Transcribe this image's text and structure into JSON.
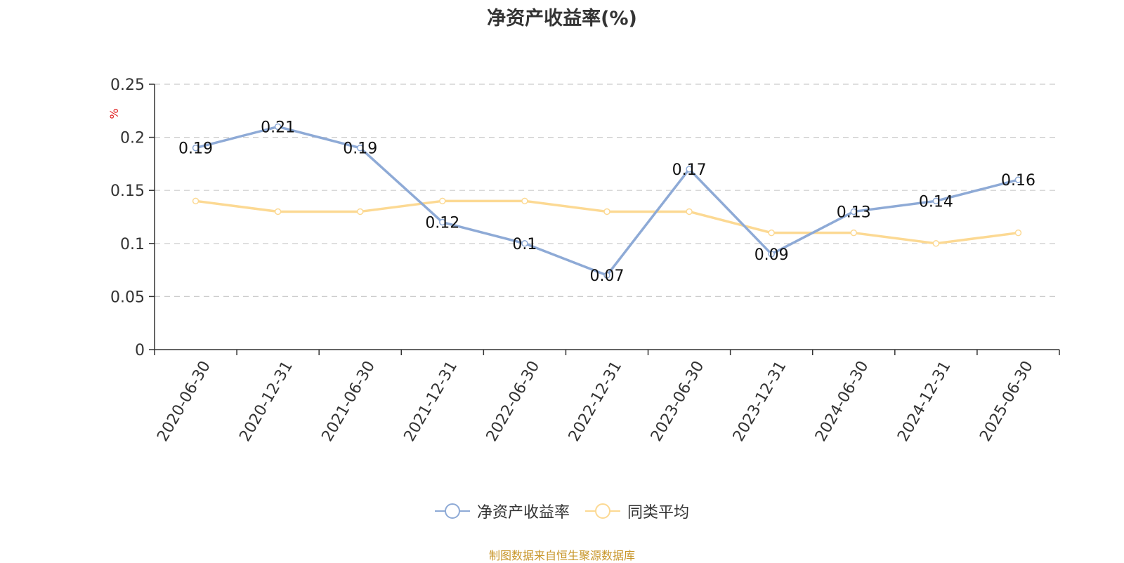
{
  "chart_data": {
    "type": "line",
    "title": "净资产收益率(%)",
    "ylabel": "%",
    "xlabel": "",
    "categories": [
      "2020-06-30",
      "2020-12-31",
      "2021-06-30",
      "2021-12-31",
      "2022-06-30",
      "2022-12-31",
      "2023-06-30",
      "2023-12-31",
      "2024-06-30",
      "2024-12-31",
      "2025-06-30"
    ],
    "ylim": [
      0,
      0.25
    ],
    "yticks": [
      "0",
      "0.05",
      "0.1",
      "0.15",
      "0.2",
      "0.25"
    ],
    "grid": true,
    "legend_position": "bottom-center",
    "series": [
      {
        "name": "净资产收益率",
        "color": "#8eaad6",
        "values": [
          0.19,
          0.21,
          0.19,
          0.12,
          0.1,
          0.07,
          0.17,
          0.09,
          0.13,
          0.14,
          0.16
        ],
        "labels": [
          "0.19",
          "0.21",
          "0.19",
          "0.12",
          "0.1",
          "0.07",
          "0.17",
          "0.09",
          "0.13",
          "0.14",
          "0.16"
        ]
      },
      {
        "name": "同类平均",
        "color": "#fcd993",
        "values": [
          0.14,
          0.13,
          0.13,
          0.14,
          0.14,
          0.13,
          0.13,
          0.11,
          0.11,
          0.1,
          0.11
        ]
      }
    ],
    "source": "制图数据来自恒生聚源数据库"
  }
}
